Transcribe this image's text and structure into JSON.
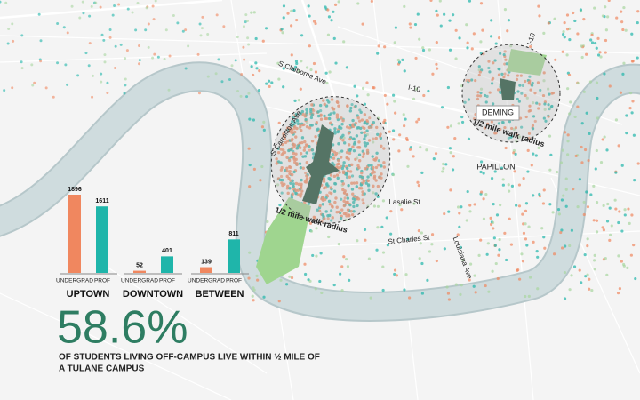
{
  "chart_data": {
    "type": "bar",
    "categories": [
      "UPTOWN",
      "DOWNTOWN",
      "BETWEEN"
    ],
    "series": [
      {
        "name": "UNDERGRAD",
        "color": "#f0875f",
        "values": [
          1896,
          52,
          139
        ]
      },
      {
        "name": "PROF",
        "color": "#1fb5aa",
        "values": [
          1611,
          401,
          811
        ]
      }
    ]
  },
  "map": {
    "labels": [
      "S Claiborne Ave",
      "I-10",
      "I-10",
      "S Carrollton Ave",
      "DEMING",
      "1/2 mile walk radius",
      "1/2 mile walk radius",
      "PAPILLON",
      "Lasalie St",
      "St Charles St",
      "Louisiana Ave"
    ]
  },
  "stat": {
    "value": "58.6%",
    "caption": [
      "OF STUDENTS LIVING OFF-CAMPUS LIVE WITHIN ½ MILE OF",
      "A TULANE CAMPUS"
    ]
  }
}
